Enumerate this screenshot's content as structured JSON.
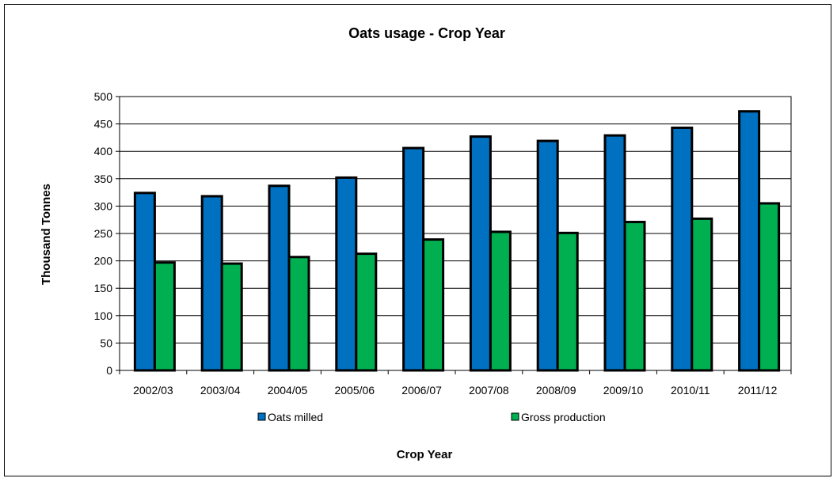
{
  "chart_data": {
    "type": "bar",
    "title": "Oats usage - Crop Year",
    "xlabel": "Crop Year",
    "ylabel": "Thousand Tonnes",
    "categories": [
      "2002/03",
      "2003/04",
      "2004/05",
      "2005/06",
      "2006/07",
      "2007/08",
      "2008/09",
      "2009/10",
      "2010/11",
      "2011/12"
    ],
    "ylim": [
      0,
      500
    ],
    "yticks": [
      0,
      50,
      100,
      150,
      200,
      250,
      300,
      350,
      400,
      450,
      500
    ],
    "grid": true,
    "legend_position": "bottom",
    "series": [
      {
        "name": "Oats milled",
        "color": "#0070C0",
        "values": [
          324,
          318,
          337,
          352,
          406,
          427,
          419,
          429,
          443,
          473
        ]
      },
      {
        "name": "Gross production",
        "color": "#00B050",
        "values": [
          197,
          195,
          207,
          213,
          239,
          253,
          251,
          271,
          277,
          305
        ]
      }
    ]
  }
}
